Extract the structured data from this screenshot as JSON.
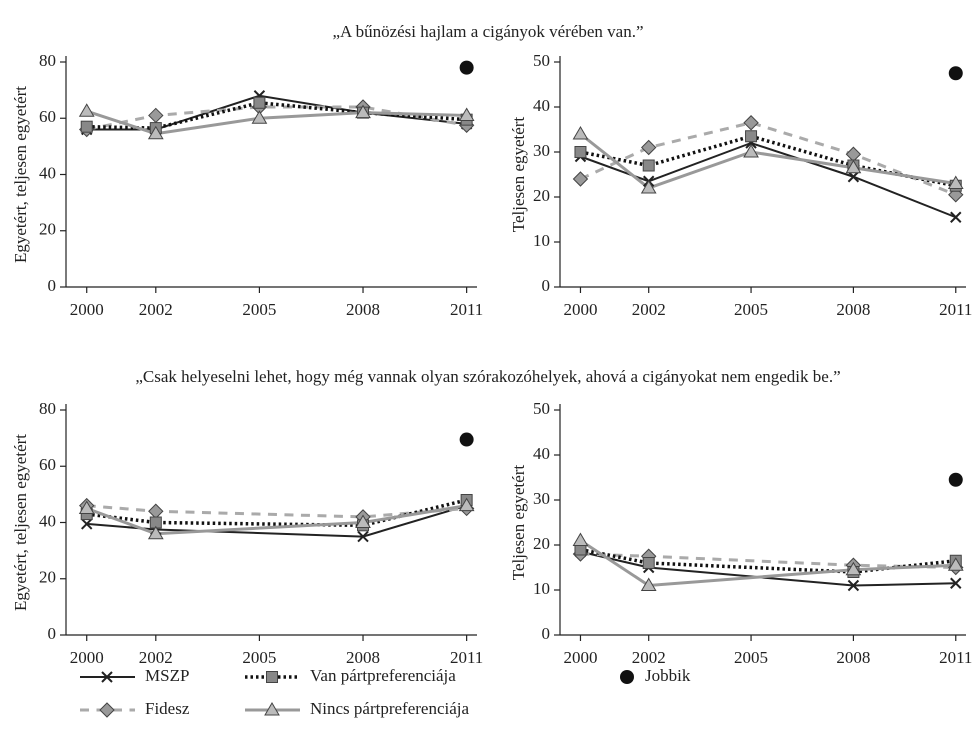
{
  "chart_data": [
    {
      "type": "line",
      "title": "„A bűnözési hajlam a cigányok vérében van.”",
      "y_label": "Egyetért, teljesen egyetért",
      "xlim": [
        1999.4,
        2011.3
      ],
      "xticks": [
        2000,
        2002,
        2005,
        2008,
        2011
      ],
      "ylim": [
        0,
        80
      ],
      "yticks": [
        0,
        20,
        40,
        60,
        80
      ],
      "x": [
        2000,
        2002,
        2005,
        2008,
        2011
      ],
      "series": [
        {
          "name": "MSZP",
          "color": "#222222",
          "marker": "x",
          "marker_fill": "#222222",
          "dash": "solid",
          "width": 2,
          "line": true,
          "values": [
            56,
            56,
            68,
            62,
            58
          ]
        },
        {
          "name": "Fidesz",
          "color": "#aaaaaa",
          "marker": "diamond",
          "marker_fill": "#999999",
          "dash": "dashed",
          "width": 3,
          "line": true,
          "values": [
            56,
            61,
            64,
            64,
            57.5
          ]
        },
        {
          "name": "Van pártpreferenciája",
          "color": "#111111",
          "marker": "square",
          "marker_fill": "#888888",
          "dash": "dotted",
          "width": 3.5,
          "line": true,
          "values": [
            57,
            56.5,
            65.5,
            62,
            59.5
          ]
        },
        {
          "name": "Nincs pártpreferenciája",
          "color": "#999999",
          "marker": "triangle",
          "marker_fill": "#bbbbbb",
          "dash": "solid",
          "width": 3,
          "line": true,
          "values": [
            62.5,
            54.5,
            60,
            62,
            61
          ]
        },
        {
          "name": "Jobbik",
          "color": "#111111",
          "marker": "circle",
          "marker_fill": "#111111",
          "dash": "solid",
          "width": 2,
          "line": false,
          "values": [
            null,
            null,
            null,
            null,
            78
          ]
        }
      ]
    },
    {
      "type": "line",
      "y_label": "Teljesen egyetért",
      "xlim": [
        1999.4,
        2011.3
      ],
      "xticks": [
        2000,
        2002,
        2005,
        2008,
        2011
      ],
      "ylim": [
        0,
        50
      ],
      "yticks": [
        0,
        10,
        20,
        30,
        40,
        50
      ],
      "x": [
        2000,
        2002,
        2005,
        2008,
        2011
      ],
      "series": [
        {
          "color": "#222222",
          "marker": "x",
          "marker_fill": "#222222",
          "dash": "solid",
          "width": 2,
          "line": true,
          "values": [
            29,
            23.5,
            32,
            24.5,
            15.5
          ]
        },
        {
          "color": "#aaaaaa",
          "marker": "diamond",
          "marker_fill": "#999999",
          "dash": "dashed",
          "width": 3,
          "line": true,
          "values": [
            24,
            31,
            36.5,
            29.5,
            20.5
          ]
        },
        {
          "color": "#111111",
          "marker": "square",
          "marker_fill": "#888888",
          "dash": "dotted",
          "width": 3.5,
          "line": true,
          "values": [
            30,
            27,
            33.5,
            27,
            22.5
          ]
        },
        {
          "color": "#999999",
          "marker": "triangle",
          "marker_fill": "#bbbbbb",
          "dash": "solid",
          "width": 3,
          "line": true,
          "values": [
            34,
            22,
            30,
            26.5,
            23
          ]
        },
        {
          "color": "#111111",
          "marker": "circle",
          "marker_fill": "#111111",
          "dash": "solid",
          "width": 2,
          "line": false,
          "values": [
            null,
            null,
            null,
            null,
            47.5
          ]
        }
      ]
    },
    {
      "type": "line",
      "title": "„Csak helyeselni lehet, hogy még vannak olyan szórakozóhelyek, ahová a cigányokat nem engedik be.”",
      "y_label": "Egyetért, teljesen egyetért",
      "xlim": [
        1999.4,
        2011.3
      ],
      "xticks": [
        2000,
        2002,
        2005,
        2008,
        2011
      ],
      "ylim": [
        0,
        80
      ],
      "yticks": [
        0,
        20,
        40,
        60,
        80
      ],
      "x": [
        2000,
        2002,
        2008,
        2011
      ],
      "series": [
        {
          "color": "#222222",
          "marker": "x",
          "marker_fill": "#222222",
          "dash": "solid",
          "width": 2,
          "line": true,
          "values": [
            39.5,
            37.5,
            35,
            46
          ]
        },
        {
          "color": "#aaaaaa",
          "marker": "diamond",
          "marker_fill": "#999999",
          "dash": "dashed",
          "width": 3,
          "line": true,
          "values": [
            46,
            44,
            42,
            45
          ]
        },
        {
          "color": "#111111",
          "marker": "square",
          "marker_fill": "#888888",
          "dash": "dotted",
          "width": 3.5,
          "line": true,
          "values": [
            43,
            40,
            39,
            48
          ]
        },
        {
          "color": "#999999",
          "marker": "triangle",
          "marker_fill": "#bbbbbb",
          "dash": "solid",
          "width": 3,
          "line": true,
          "values": [
            45,
            36,
            40,
            46
          ]
        },
        {
          "color": "#111111",
          "marker": "circle",
          "marker_fill": "#111111",
          "dash": "solid",
          "width": 2,
          "line": false,
          "values": [
            null,
            null,
            null,
            69.5
          ]
        }
      ]
    },
    {
      "type": "line",
      "y_label": "Teljesen egyetért",
      "xlim": [
        1999.4,
        2011.3
      ],
      "xticks": [
        2000,
        2002,
        2005,
        2008,
        2011
      ],
      "ylim": [
        0,
        50
      ],
      "yticks": [
        0,
        10,
        20,
        30,
        40,
        50
      ],
      "x": [
        2000,
        2002,
        2008,
        2011
      ],
      "series": [
        {
          "color": "#222222",
          "marker": "x",
          "marker_fill": "#222222",
          "dash": "solid",
          "width": 2,
          "line": true,
          "values": [
            18.5,
            15,
            11,
            11.5
          ]
        },
        {
          "color": "#aaaaaa",
          "marker": "diamond",
          "marker_fill": "#999999",
          "dash": "dashed",
          "width": 3,
          "line": true,
          "values": [
            18,
            17.5,
            15.5,
            15
          ]
        },
        {
          "color": "#111111",
          "marker": "square",
          "marker_fill": "#888888",
          "dash": "dotted",
          "width": 3.5,
          "line": true,
          "values": [
            19,
            16,
            14,
            16.5
          ]
        },
        {
          "color": "#999999",
          "marker": "triangle",
          "marker_fill": "#bbbbbb",
          "dash": "solid",
          "width": 3,
          "line": true,
          "values": [
            21,
            11,
            14.5,
            15.5
          ]
        },
        {
          "color": "#111111",
          "marker": "circle",
          "marker_fill": "#111111",
          "dash": "solid",
          "width": 2,
          "line": false,
          "values": [
            null,
            null,
            null,
            34.5
          ]
        }
      ]
    }
  ]
}
